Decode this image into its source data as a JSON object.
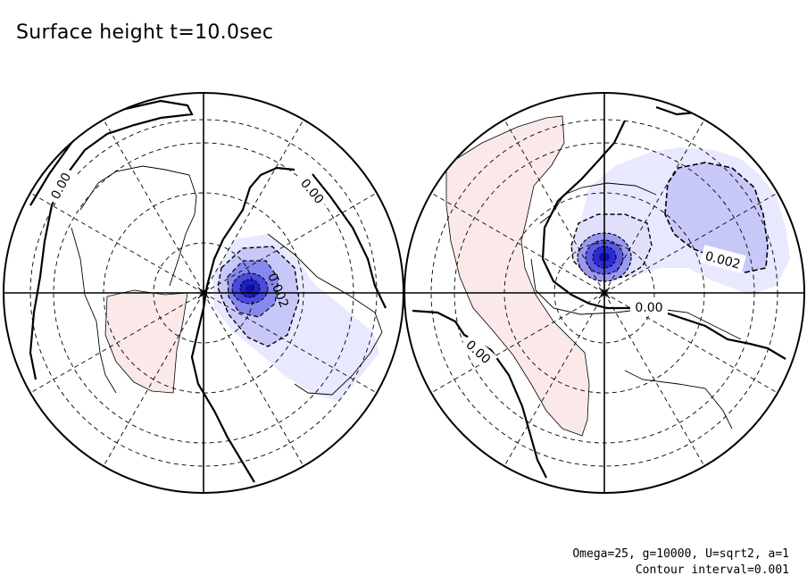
{
  "title": "Surface height t=10.0sec",
  "params_line": "Omega=25, g=10000, U=sqrt2, a=1",
  "interval_line": "Contour interval=0.001",
  "contour_labels": {
    "left_a": "0.00",
    "left_b": "0.00",
    "left_c": "0.002",
    "right_a": "0.002",
    "right_b": "0.00",
    "right_c": "0.00"
  },
  "colors": {
    "negative_light": "#e8e8ff",
    "negative_mid": "#c8c8f8",
    "negative_strong": "#6060e8",
    "negative_core": "#2020d0",
    "positive_light": "#fbe9e9",
    "outline": "#000000"
  }
}
